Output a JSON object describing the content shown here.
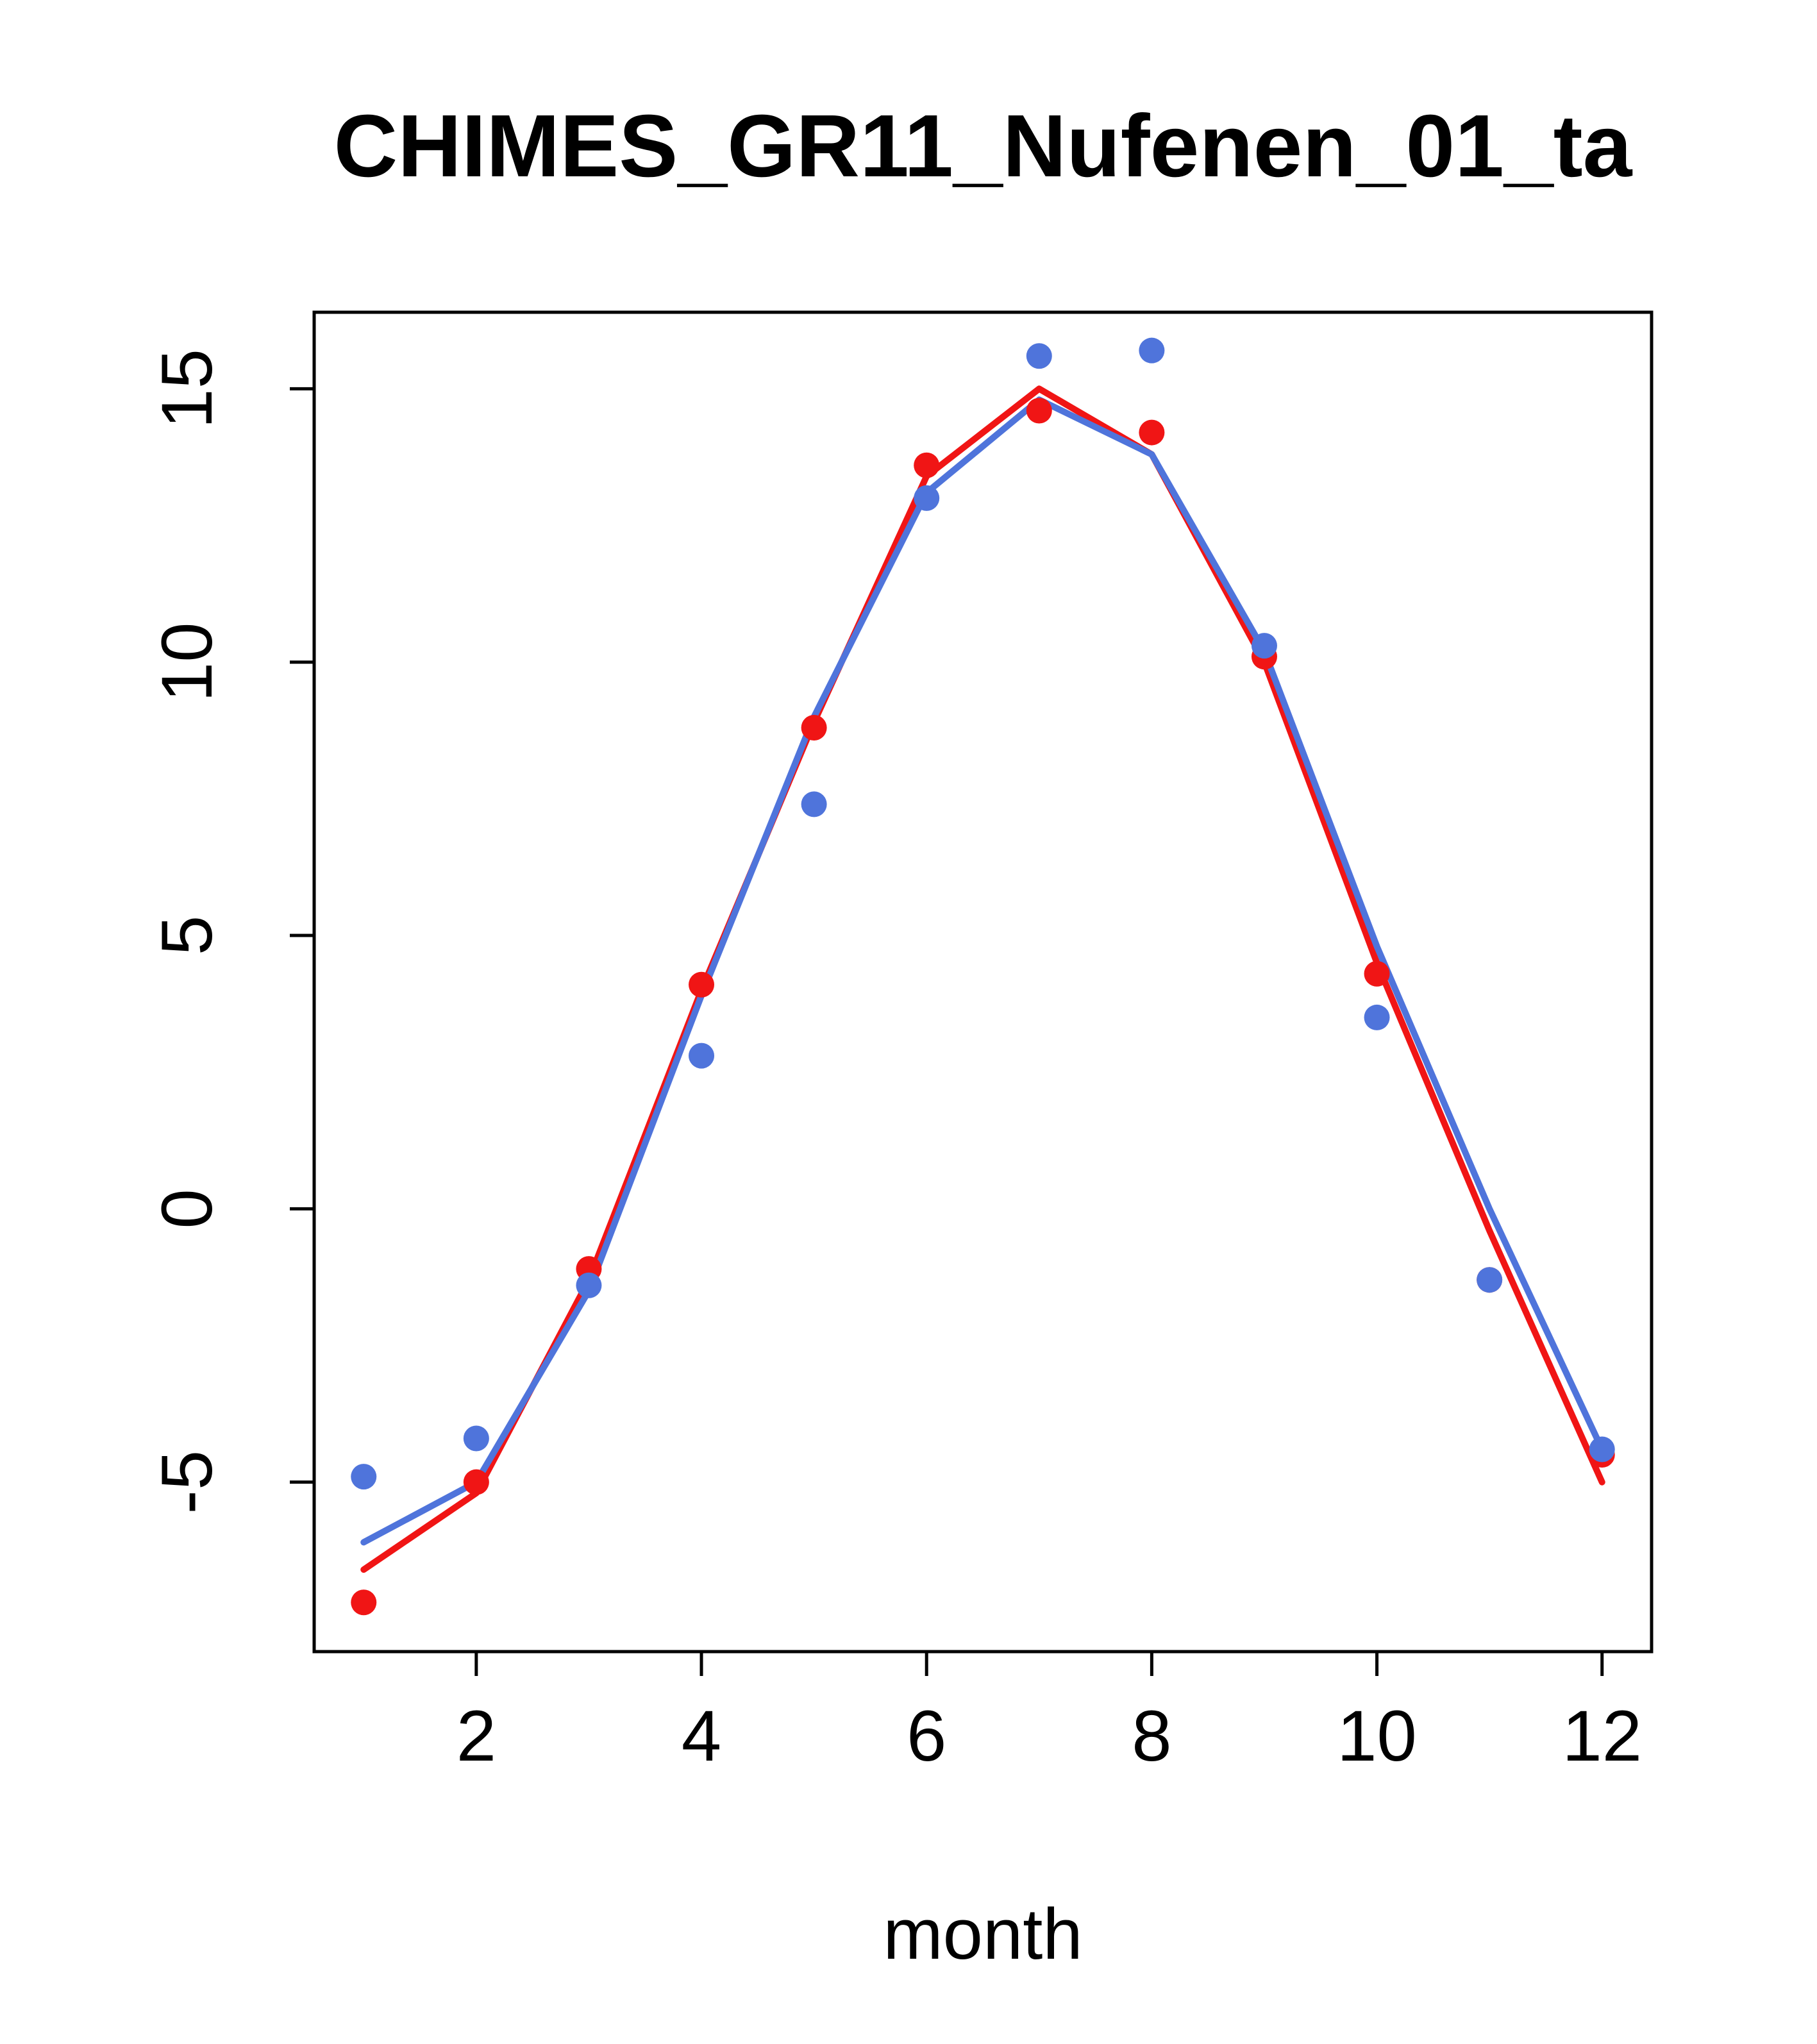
{
  "title": "CHIMES_GR11_Nufenen_01_ta",
  "chart_data": {
    "type": "scatter",
    "title": "CHIMES_GR11_Nufenen_01_ta",
    "xlabel": "month",
    "ylabel": "",
    "xlim": [
      0.56,
      12.44
    ],
    "ylim": [
      -8.1,
      16.4
    ],
    "xticks": [
      2,
      4,
      6,
      8,
      10,
      12
    ],
    "yticks": [
      -5,
      0,
      5,
      10,
      15
    ],
    "grid": false,
    "legend_position": "none",
    "x": [
      1,
      2,
      3,
      4,
      5,
      6,
      7,
      8,
      9,
      10,
      11,
      12
    ],
    "series": [
      {
        "name": "red-fit-line",
        "kind": "line",
        "color": "#f01515",
        "values": [
          -6.6,
          -5.2,
          -1.3,
          4.0,
          8.9,
          13.4,
          15.0,
          13.8,
          10.0,
          4.5,
          -0.4,
          -5.0
        ]
      },
      {
        "name": "blue-fit-line",
        "kind": "line",
        "color": "#4f74db",
        "values": [
          -6.1,
          -5.0,
          -1.5,
          3.9,
          9.0,
          13.1,
          14.8,
          13.8,
          10.2,
          4.8,
          0.0,
          -4.4
        ]
      },
      {
        "name": "red-points",
        "kind": "points",
        "color": "#f01515",
        "values": [
          -7.2,
          -5.0,
          -1.1,
          4.1,
          8.8,
          13.6,
          14.6,
          14.2,
          10.1,
          4.3,
          -1.3,
          -4.5
        ]
      },
      {
        "name": "blue-points",
        "kind": "points",
        "color": "#4f74db",
        "values": [
          -4.9,
          -4.2,
          -1.4,
          2.8,
          7.4,
          13.0,
          15.6,
          15.7,
          10.3,
          3.5,
          -1.3,
          -4.4
        ]
      }
    ],
    "style": {
      "box_color": "#000000",
      "background": "#ffffff",
      "line_width": 10,
      "point_radius": 20
    }
  }
}
